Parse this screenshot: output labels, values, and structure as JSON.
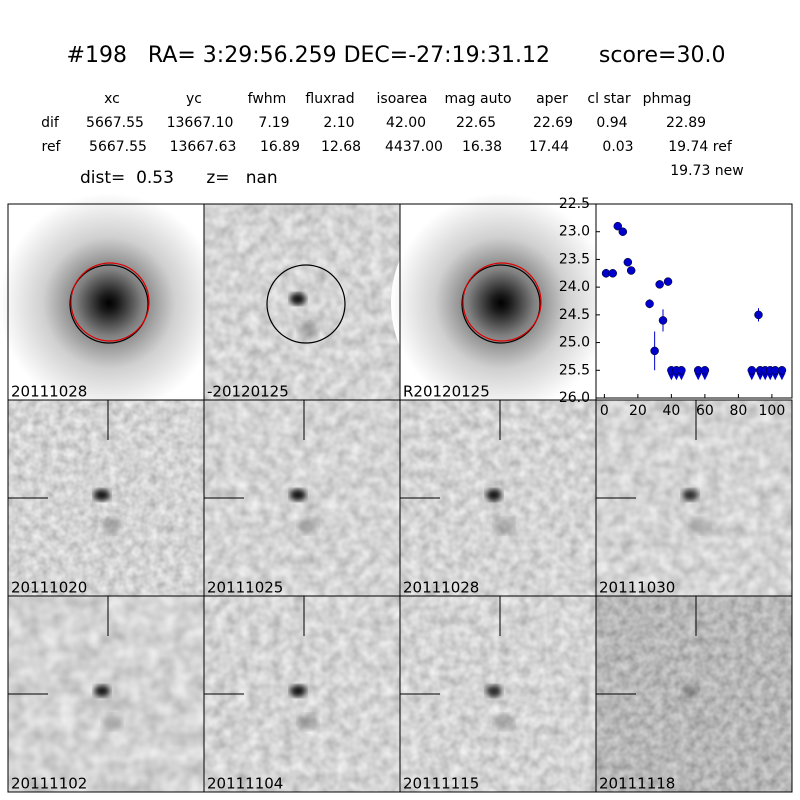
{
  "header": {
    "title": "#198   RA= 3:29:56.259 DEC=-27:19:31.12       score=30.0",
    "dist": "dist=  0.53      z=   nan"
  },
  "table": {
    "columns": [
      "xc",
      "yc",
      "fwhm",
      "fluxrad",
      "isoarea",
      "mag auto",
      "aper",
      "cl star",
      "phmag"
    ],
    "rows": [
      [
        "dif",
        "5667.55",
        "13667.10",
        "7.19",
        "2.10",
        "42.00",
        "22.65",
        "22.69",
        "0.94",
        "22.89"
      ],
      [
        "ref",
        "5667.55",
        "13667.63",
        "16.89",
        "12.68",
        "4437.00",
        "16.38",
        "17.44",
        "0.03",
        "19.74 ref"
      ]
    ],
    "note": "19.73 new"
  },
  "panels": [
    {
      "label": "20111028"
    },
    {
      "label": "-20120125"
    },
    {
      "label": "R20120125"
    },
    {
      "label": "20111020"
    },
    {
      "label": "20111025"
    },
    {
      "label": "20111028",
      "highlight": true
    },
    {
      "label": "20111030"
    },
    {
      "label": "20111102"
    },
    {
      "label": "20111104"
    },
    {
      "label": "20111115"
    },
    {
      "label": "20111118"
    }
  ],
  "chart_data": {
    "type": "scatter",
    "color": "#0000cc",
    "xlim": [
      -5,
      112
    ],
    "ylim": [
      26.0,
      22.5
    ],
    "xticks": [
      0,
      20,
      40,
      60,
      80,
      100
    ],
    "yticks": [
      22.5,
      {
        "value": 23.0,
        "label": "23.0"
      },
      23.5,
      {
        "value": 24.0,
        "label": "24.0"
      },
      24.5,
      {
        "value": 25.0,
        "label": "25.0"
      },
      25.5,
      {
        "value": 26.0,
        "label": "26.0"
      }
    ],
    "series": [
      {
        "marker": "circle",
        "x": [
          1,
          5,
          8,
          11,
          14,
          16,
          27,
          30,
          33,
          35,
          38,
          92
        ],
        "values": [
          23.75,
          23.75,
          22.9,
          23.0,
          23.55,
          23.7,
          24.3,
          25.15,
          23.95,
          24.6,
          23.9,
          24.5
        ],
        "errors": [
          0.08,
          0.05,
          0.03,
          0.03,
          0.05,
          0.05,
          0.08,
          0.35,
          0.06,
          0.2,
          0.05,
          0.12
        ]
      },
      {
        "marker": "limit",
        "x": [
          40,
          43,
          46,
          56,
          60,
          88,
          93,
          96,
          99,
          102,
          106
        ],
        "values": [
          25.5,
          25.5,
          25.5,
          25.5,
          25.5,
          25.5,
          25.5,
          25.5,
          25.5,
          25.5,
          25.5
        ]
      }
    ]
  }
}
